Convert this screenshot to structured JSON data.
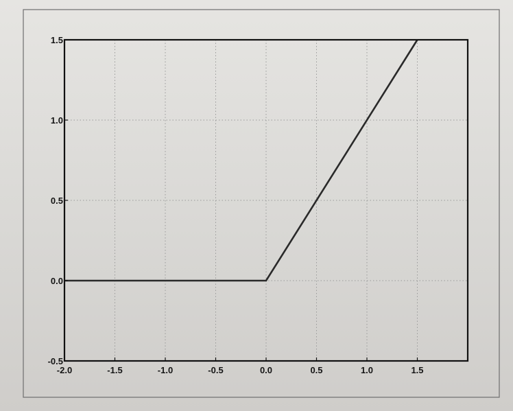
{
  "chart_data": {
    "type": "line",
    "title": "",
    "xlabel": "",
    "ylabel": "",
    "xlim": [
      -2.0,
      2.0
    ],
    "ylim": [
      -0.5,
      1.5
    ],
    "grid": true,
    "x_ticks": [
      "-2.0",
      "-1.5",
      "-1.0",
      "-0.5",
      "0.0",
      "0.5",
      "1.0",
      "1.5"
    ],
    "y_ticks": [
      "-0.5",
      "0.0",
      "0.5",
      "1.0",
      "1.5"
    ],
    "series": [
      {
        "x": [
          -2.0,
          0.0,
          1.5
        ],
        "y": [
          0.0,
          0.0,
          1.5
        ]
      }
    ],
    "colors": {
      "line": "#2a2a2a",
      "grid": "#9a9a9a",
      "frame": "#111111"
    }
  }
}
